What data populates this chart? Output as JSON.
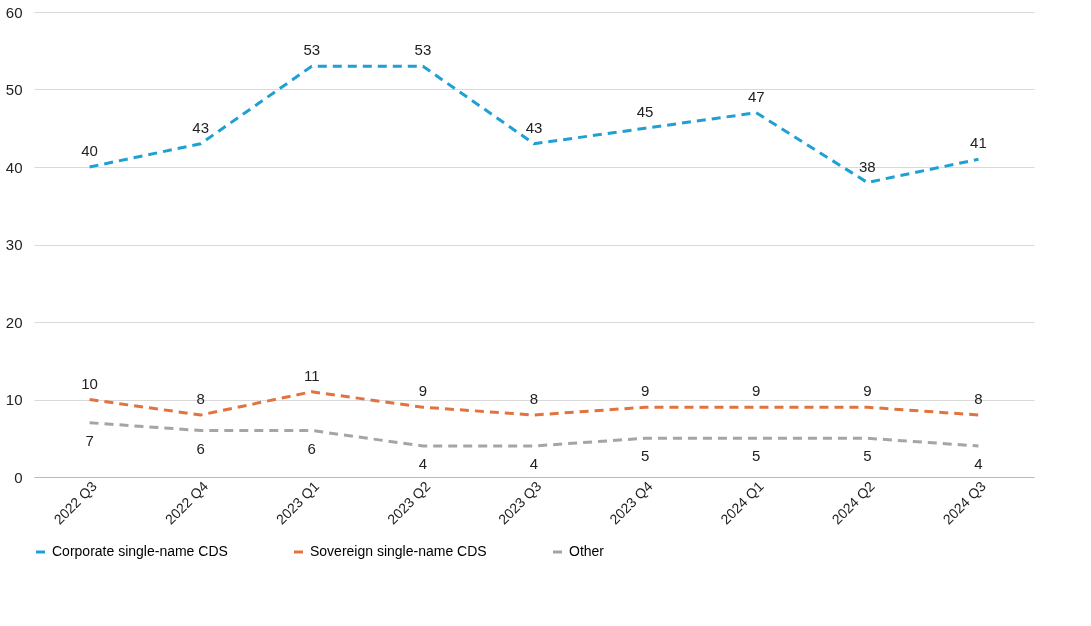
{
  "chart_data": {
    "type": "line",
    "categories": [
      "2022 Q3",
      "2022 Q4",
      "2023 Q1",
      "2023 Q2",
      "2023 Q3",
      "2023 Q4",
      "2024 Q1",
      "2024 Q2",
      "2024 Q3"
    ],
    "series": [
      {
        "name": "Corporate single-name CDS",
        "color": "#1ea0d4",
        "values": [
          40,
          43,
          53,
          53,
          43,
          45,
          47,
          38,
          41
        ]
      },
      {
        "name": "Sovereign single-name CDS",
        "color": "#e2733f",
        "values": [
          10,
          8,
          11,
          9,
          8,
          9,
          9,
          9,
          8
        ]
      },
      {
        "name": "Other",
        "color": "#a5a5a5",
        "values": [
          7,
          6,
          6,
          4,
          4,
          5,
          5,
          5,
          4
        ]
      }
    ],
    "ylim": [
      0,
      60
    ],
    "yticks": [
      0,
      10,
      20,
      30,
      40,
      50,
      60
    ],
    "grid": "y",
    "legend": "bottom",
    "data_labels": true,
    "line_style": "dashed",
    "marker": "none"
  }
}
